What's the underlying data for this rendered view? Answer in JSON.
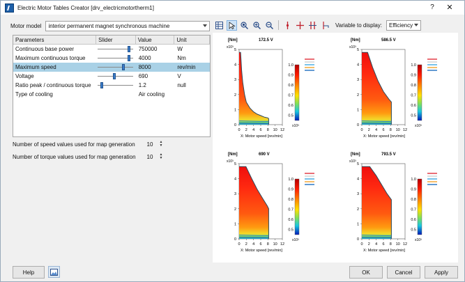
{
  "window": {
    "title": "Electric Motor Tables Creator [drv_electricmotortherm1]",
    "help_glyph": "?",
    "close_glyph": "✕"
  },
  "toolbar": {
    "motor_model_label": "Motor model",
    "motor_model_value": "interior permanent magnet synchronous machine",
    "variable_label": "Variable to display:",
    "variable_value": "Efficiency",
    "icons": [
      "table-icon",
      "pointer-icon",
      "zoom-area-icon",
      "zoom-in-icon",
      "zoom-out-icon",
      "marker-icon",
      "crosshair-icon",
      "double-marker-icon",
      "axis-marker-icon"
    ]
  },
  "params": {
    "headers": [
      "Parameters",
      "Slider",
      "Value",
      "Unit"
    ],
    "rows": [
      {
        "name": "Continuous base power",
        "value": "750000",
        "unit": "W",
        "slider": 0.92,
        "has_slider": true,
        "selected": false
      },
      {
        "name": "Maximum continuous torque",
        "value": "4000",
        "unit": "Nm",
        "slider": 0.92,
        "has_slider": true,
        "selected": false
      },
      {
        "name": "Maximum speed",
        "value": "8000",
        "unit": "rev/min",
        "slider": 0.74,
        "has_slider": true,
        "selected": true
      },
      {
        "name": "Voltage",
        "value": "690",
        "unit": "V",
        "slider": 0.46,
        "has_slider": true,
        "selected": false
      },
      {
        "name": "Ratio peak / continuous torque",
        "value": "1.2",
        "unit": "null",
        "slider": 0.08,
        "has_slider": true,
        "selected": false
      },
      {
        "name": "Type of cooling",
        "value": "Air cooling",
        "unit": "",
        "slider": 0,
        "has_slider": false,
        "selected": false
      }
    ]
  },
  "spinners": {
    "speed_label": "Number of speed values used for map generation",
    "speed_value": "10",
    "torque_label": "Number of torque values used for map generation",
    "torque_value": "10"
  },
  "buttons": {
    "help": "Help",
    "ok": "OK",
    "cancel": "Cancel",
    "apply": "Apply"
  },
  "chart_data": [
    {
      "type": "heatmap",
      "title": "172.5 V",
      "ylabel": "[Nm]",
      "y_exp": "x10³",
      "xlabel": "X: Motor speed [rev/min]",
      "x_exp": "x10³",
      "xlim": [
        0,
        12
      ],
      "ylim": [
        0,
        5
      ],
      "x_ticks": [
        "0",
        "2",
        "4",
        "6",
        "8",
        "10",
        "12"
      ],
      "y_ticks": [
        "0",
        "1",
        "2",
        "3",
        "4",
        "5"
      ],
      "envelope": [
        [
          0,
          4.8
        ],
        [
          0.4,
          4.8
        ],
        [
          0.7,
          3.6
        ],
        [
          1.0,
          2.8
        ],
        [
          1.5,
          2.0
        ],
        [
          2,
          1.5
        ],
        [
          3,
          1.1
        ],
        [
          4,
          0.85
        ],
        [
          5,
          0.7
        ],
        [
          6,
          0.6
        ],
        [
          7,
          0.5
        ],
        [
          8,
          0.45
        ],
        [
          8.2,
          0.4
        ],
        [
          8.2,
          0
        ]
      ],
      "colorbar_ticks": [
        "1.0",
        "0.9",
        "0.8",
        "0.7",
        "0.6",
        "0.5"
      ],
      "colorbar_range": [
        0.45,
        1.0
      ]
    },
    {
      "type": "heatmap",
      "title": "586.5 V",
      "ylabel": "[Nm]",
      "y_exp": "x10³",
      "xlabel": "X: Motor speed [rev/min]",
      "x_exp": "x10³",
      "xlim": [
        0,
        12
      ],
      "ylim": [
        0,
        5
      ],
      "x_ticks": [
        "0",
        "2",
        "4",
        "6",
        "8",
        "10",
        "12"
      ],
      "y_ticks": [
        "0",
        "1",
        "2",
        "3",
        "4",
        "5"
      ],
      "envelope": [
        [
          0,
          4.8
        ],
        [
          1.6,
          4.8
        ],
        [
          3,
          3.8
        ],
        [
          4.5,
          2.9
        ],
        [
          6,
          2.2
        ],
        [
          7.5,
          1.7
        ],
        [
          8.2,
          1.5
        ],
        [
          8.2,
          0
        ]
      ],
      "colorbar_ticks": [
        "1.0",
        "0.9",
        "0.8",
        "0.7",
        "0.6",
        "0.5"
      ],
      "colorbar_range": [
        0.45,
        1.0
      ]
    },
    {
      "type": "heatmap",
      "title": "690 V",
      "ylabel": "[Nm]",
      "y_exp": "x10³",
      "xlabel": "X: Motor speed [rev/min]",
      "x_exp": "x10³",
      "xlim": [
        0,
        12
      ],
      "ylim": [
        0,
        5
      ],
      "x_ticks": [
        "0",
        "2",
        "4",
        "6",
        "8",
        "10",
        "12"
      ],
      "y_ticks": [
        "0",
        "1",
        "2",
        "3",
        "4",
        "5"
      ],
      "envelope": [
        [
          0,
          4.8
        ],
        [
          1.9,
          4.8
        ],
        [
          3.5,
          4.0
        ],
        [
          5,
          3.3
        ],
        [
          6.5,
          2.7
        ],
        [
          7.8,
          2.2
        ],
        [
          8.2,
          2.0
        ],
        [
          8.2,
          0
        ]
      ],
      "colorbar_ticks": [
        "1.0",
        "0.9",
        "0.8",
        "0.7",
        "0.6",
        "0.5"
      ],
      "colorbar_range": [
        0.45,
        1.0
      ]
    },
    {
      "type": "heatmap",
      "title": "793.5 V",
      "ylabel": "[Nm]",
      "y_exp": "x10³",
      "xlabel": "X: Motor speed [rev/min]",
      "x_exp": "x10³",
      "xlim": [
        0,
        12
      ],
      "ylim": [
        0,
        5
      ],
      "x_ticks": [
        "0",
        "2",
        "4",
        "6",
        "8",
        "10",
        "12"
      ],
      "y_ticks": [
        "0",
        "1",
        "2",
        "3",
        "4",
        "5"
      ],
      "envelope": [
        [
          0,
          4.8
        ],
        [
          2.2,
          4.8
        ],
        [
          4,
          4.2
        ],
        [
          5.5,
          3.6
        ],
        [
          7,
          3.0
        ],
        [
          8.2,
          2.6
        ],
        [
          8.2,
          0
        ]
      ],
      "colorbar_ticks": [
        "1.0",
        "0.9",
        "0.8",
        "0.7",
        "0.6",
        "0.5"
      ],
      "colorbar_range": [
        0.45,
        1.0
      ]
    }
  ],
  "legend_colors": [
    "#e0303a",
    "#cfcfcf",
    "#3fa9e0",
    "#f2a22c",
    "#1f6fc0"
  ],
  "colors": {
    "selection": "#a9d1e6",
    "slider_thumb": "#3a7bc8"
  }
}
